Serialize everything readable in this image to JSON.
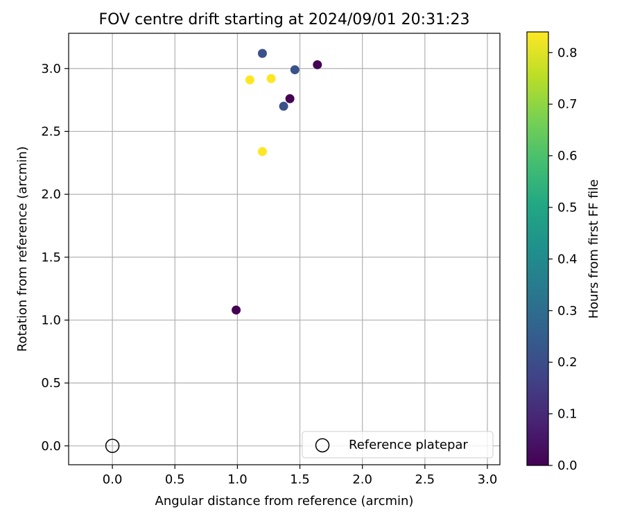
{
  "chart_data": {
    "type": "scatter",
    "title": "FOV centre drift starting at 2024/09/01 20:31:23",
    "xlabel": "Angular distance from reference (arcmin)",
    "ylabel": "Rotation from reference (arcmin)",
    "xlim": [
      -0.35,
      3.1
    ],
    "ylim": [
      -0.15,
      3.28
    ],
    "xticks": [
      0.0,
      0.5,
      1.0,
      1.5,
      2.0,
      2.5,
      3.0
    ],
    "xtick_labels": [
      "0.0",
      "0.5",
      "1.0",
      "1.5",
      "2.0",
      "2.5",
      "3.0"
    ],
    "yticks": [
      0.0,
      0.5,
      1.0,
      1.5,
      2.0,
      2.5,
      3.0
    ],
    "ytick_labels": [
      "0.0",
      "0.5",
      "1.0",
      "1.5",
      "2.0",
      "2.5",
      "3.0"
    ],
    "grid": true,
    "legend_position": "lower-right",
    "colormap": "viridis",
    "series": [
      {
        "points": [
          {
            "x": 0.99,
            "y": 1.08,
            "hours": 0.0
          },
          {
            "x": 1.64,
            "y": 3.03,
            "hours": 0.0
          },
          {
            "x": 1.42,
            "y": 2.76,
            "hours": 0.0
          },
          {
            "x": 1.2,
            "y": 3.12,
            "hours": 0.21
          },
          {
            "x": 1.46,
            "y": 2.99,
            "hours": 0.21
          },
          {
            "x": 1.37,
            "y": 2.7,
            "hours": 0.21
          },
          {
            "x": 1.1,
            "y": 2.91,
            "hours": 0.84
          },
          {
            "x": 1.27,
            "y": 2.92,
            "hours": 0.84
          },
          {
            "x": 1.2,
            "y": 2.34,
            "hours": 0.84
          }
        ]
      }
    ],
    "reference": {
      "name": "Reference platepar",
      "x": 0.0,
      "y": 0.0
    },
    "colorbar": {
      "label": "Hours from first FF file",
      "range": [
        0.0,
        0.84
      ],
      "ticks": [
        0.0,
        0.1,
        0.2,
        0.3,
        0.4,
        0.5,
        0.6,
        0.7,
        0.8
      ],
      "tick_labels": [
        "0.0",
        "0.1",
        "0.2",
        "0.3",
        "0.4",
        "0.5",
        "0.6",
        "0.7",
        "0.8"
      ]
    }
  }
}
